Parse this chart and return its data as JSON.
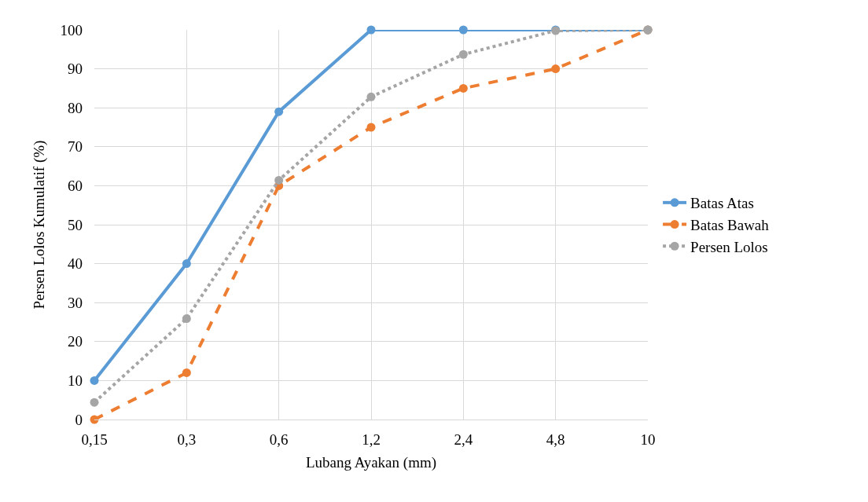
{
  "chart_data": {
    "type": "line",
    "xlabel": "Lubang Ayakan (mm)",
    "ylabel": "Persen Lolos Kumulatif (%)",
    "categories": [
      "0,15",
      "0,3",
      "0,6",
      "1,2",
      "2,4",
      "4,8",
      "10"
    ],
    "series": [
      {
        "name": "Batas Atas",
        "color": "#5b9bd5",
        "line_style": "solid",
        "values": [
          10,
          40,
          79,
          100,
          100,
          100,
          100
        ]
      },
      {
        "name": "Batas Bawah",
        "color": "#ed7d31",
        "line_style": "dashed",
        "values": [
          0,
          12,
          60,
          75,
          85,
          90,
          100
        ]
      },
      {
        "name": "Persen Lolos",
        "color": "#a5a5a5",
        "line_style": "dotted",
        "values": [
          4.4,
          25.9,
          61.4,
          82.8,
          93.7,
          99.8,
          100
        ]
      }
    ],
    "ylim": [
      0,
      100
    ],
    "yticks": [
      0,
      10,
      20,
      30,
      40,
      50,
      60,
      70,
      80,
      90,
      100
    ],
    "grid": true,
    "legend": "right",
    "marker": "circle"
  }
}
